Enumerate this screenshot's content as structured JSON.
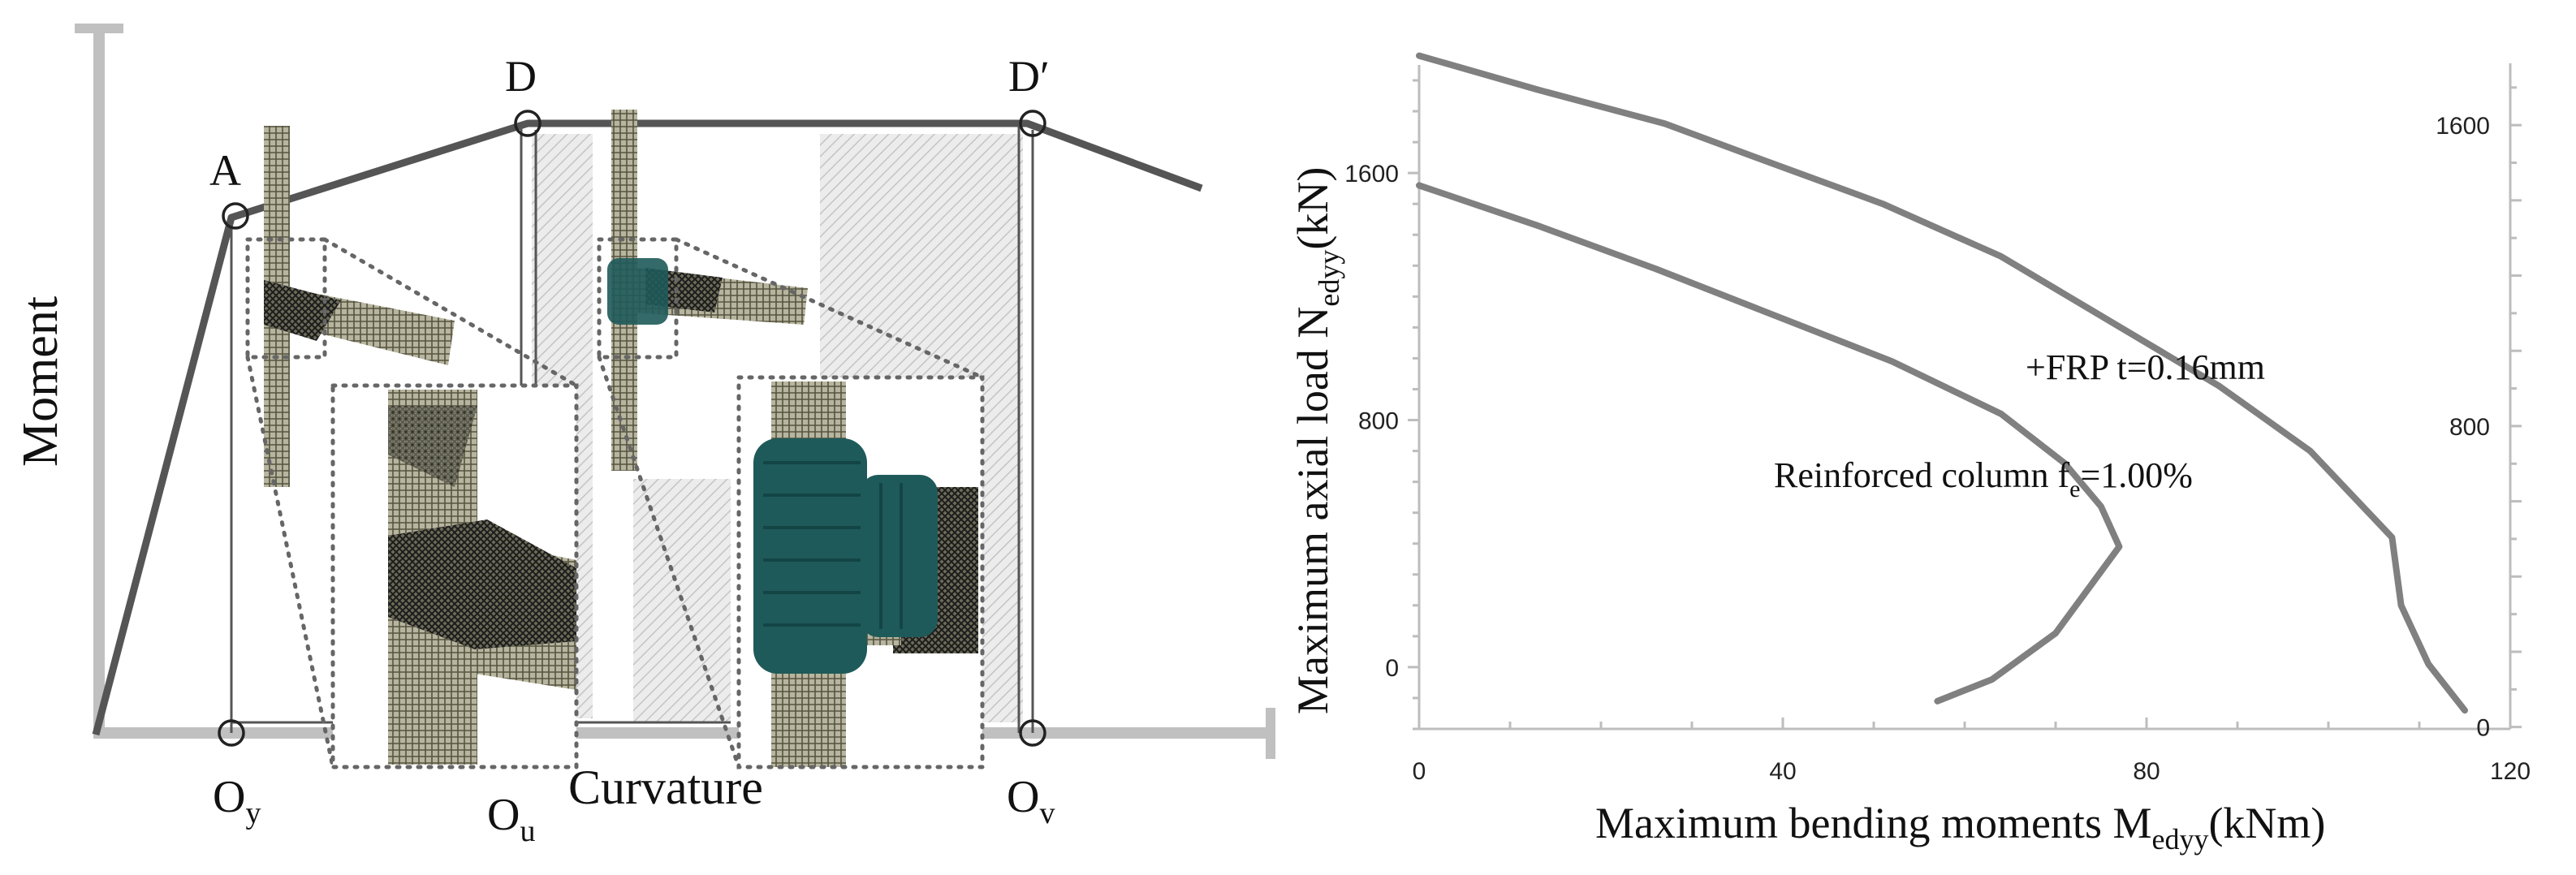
{
  "left_diagram": {
    "axis_y_label": "Moment",
    "axis_x_label": "Curvature",
    "points": {
      "A": "A",
      "D": "D",
      "Dp": "D′",
      "Oy": "O",
      "Oy_sub": "y",
      "Ou": "O",
      "Ou_sub": "u",
      "Ov": "O",
      "Ov_sub": "v"
    },
    "colors": {
      "axis": "#c0c0c0",
      "curve": "#555555",
      "frp": "#1f5a5a",
      "mesh": "#7a786a",
      "hatch": "#d8d8d8"
    }
  },
  "chart_data": {
    "type": "line",
    "xlabel": "Maximum bending moments M",
    "xlabel_sub": "edyy",
    "xlabel_unit": "(kNm)",
    "ylabel": "Maximum axial load N",
    "ylabel_sub": "edyy",
    "ylabel_unit": "(kN)",
    "xlim": [
      0,
      120
    ],
    "x_ticks": [
      0,
      40,
      80,
      120
    ],
    "left_ylim": [
      -200,
      1950
    ],
    "left_y_ticks": [
      0,
      800,
      1600
    ],
    "right_ylim": [
      -5,
      1760
    ],
    "right_y_ticks": [
      0,
      800,
      1600
    ],
    "grid": false,
    "series": [
      {
        "label_main": "Reinforced column f",
        "label_sub": "e",
        "label_tail": "=1.00%",
        "color": "#808080",
        "x": [
          57,
          63,
          70,
          74,
          77,
          75,
          71,
          64,
          52,
          39,
          26,
          13,
          0
        ],
        "y": [
          -110,
          -40,
          110,
          270,
          390,
          520,
          660,
          820,
          990,
          1140,
          1290,
          1430,
          1560
        ]
      },
      {
        "label_main": "+FRP t=0.16mm",
        "color": "#808080",
        "x": [
          115,
          111,
          108,
          107,
          98,
          88,
          76,
          64,
          51,
          38,
          27,
          13,
          0
        ],
        "y": [
          -140,
          10,
          200,
          420,
          700,
          910,
          1120,
          1330,
          1500,
          1640,
          1760,
          1870,
          1980
        ]
      }
    ]
  }
}
